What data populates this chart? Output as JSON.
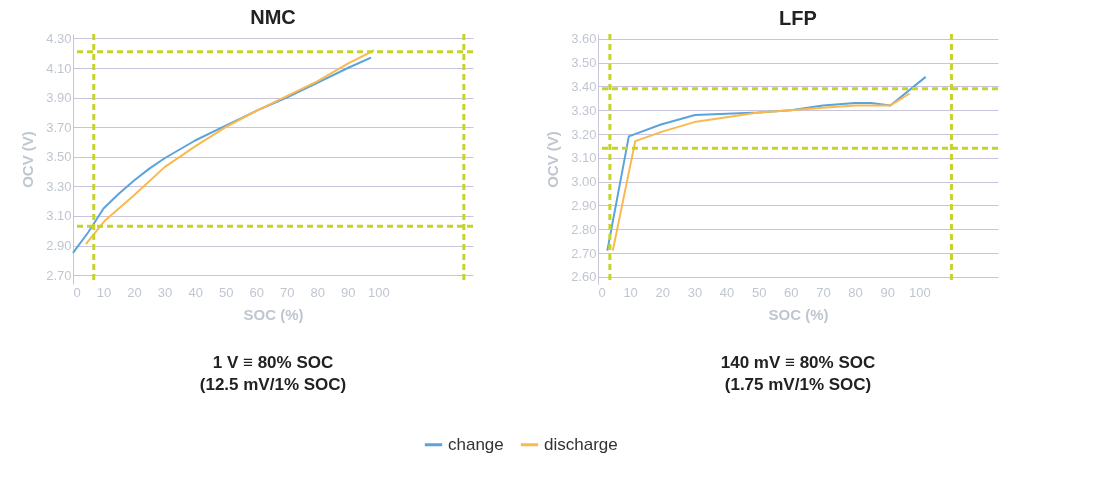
{
  "chart_data": [
    {
      "type": "line",
      "title": "NMC",
      "xlabel": "SOC (%)",
      "ylabel": "OCV (V)",
      "xlim": [
        0,
        131
      ],
      "xticks": [
        0,
        10,
        20,
        30,
        40,
        50,
        60,
        70,
        80,
        90,
        100
      ],
      "ylim": [
        2.64,
        4.33
      ],
      "yticks": [
        {
          "value": 2.7,
          "label": "2.70"
        },
        {
          "value": 2.9,
          "label": "2.90"
        },
        {
          "value": 3.1,
          "label": "3.10"
        },
        {
          "value": 3.3,
          "label": "3.30"
        },
        {
          "value": 3.5,
          "label": "3.50"
        },
        {
          "value": 3.7,
          "label": "3.70"
        },
        {
          "value": 3.9,
          "label": "3.90"
        },
        {
          "value": 4.1,
          "label": "4.10"
        },
        {
          "value": 4.3,
          "label": "4.30"
        }
      ],
      "grid": "y",
      "legend": "bottom",
      "marker": "none",
      "line_style": "solid",
      "series": [
        {
          "name": "change",
          "color": "#5ba3dc",
          "x": [
            0,
            5,
            10,
            15,
            20,
            25,
            30,
            40,
            50,
            55,
            60,
            70,
            80,
            90,
            97.6
          ],
          "values": [
            2.85,
            2.99,
            3.15,
            3.25,
            3.34,
            3.42,
            3.49,
            3.61,
            3.71,
            3.76,
            3.81,
            3.9,
            4.0,
            4.1,
            4.17
          ]
        },
        {
          "name": "discharge",
          "color": "#fbb84d",
          "x": [
            4.2,
            10.5,
            20,
            30,
            40,
            50,
            60,
            70,
            80,
            90,
            98.6
          ],
          "values": [
            2.91,
            3.07,
            3.24,
            3.43,
            3.57,
            3.7,
            3.81,
            3.91,
            4.01,
            4.13,
            4.22
          ]
        }
      ],
      "ref_lines": [
        {
          "axis": "y",
          "value": 4.21,
          "color": "#c5d32a",
          "line_style": "dashed"
        },
        {
          "axis": "y",
          "value": 3.03,
          "color": "#c5d32a",
          "line_style": "dashed"
        },
        {
          "axis": "x",
          "value": 6.8,
          "color": "#c5d32a",
          "line_style": "dashed"
        },
        {
          "axis": "x",
          "value": 128,
          "color": "#c5d32a",
          "line_style": "dashed"
        }
      ],
      "annotations": [
        "1 V ≡ 80% SOC",
        "(12.5 mV/1% SOC)"
      ]
    },
    {
      "type": "line",
      "title": "LFP",
      "xlabel": "SOC (%)",
      "ylabel": "OCV (V)",
      "xlim": [
        0,
        124.5
      ],
      "xticks": [
        0,
        10,
        20,
        30,
        40,
        50,
        60,
        70,
        80,
        90,
        100
      ],
      "ylim": [
        2.57,
        3.62
      ],
      "yticks": [
        {
          "value": 2.6,
          "label": "2.60"
        },
        {
          "value": 2.7,
          "label": "2.70"
        },
        {
          "value": 2.8,
          "label": "2.80"
        },
        {
          "value": 2.9,
          "label": "2.90"
        },
        {
          "value": 3.0,
          "label": "3.00"
        },
        {
          "value": 3.1,
          "label": "3.10"
        },
        {
          "value": 3.2,
          "label": "3.20"
        },
        {
          "value": 3.3,
          "label": "3.30"
        },
        {
          "value": 3.4,
          "label": "3.40"
        },
        {
          "value": 3.5,
          "label": "3.50"
        },
        {
          "value": 3.6,
          "label": "3.60"
        }
      ],
      "grid": "y",
      "legend": "bottom",
      "marker": "none",
      "line_style": "solid",
      "series": [
        {
          "name": "change",
          "color": "#5ba3dc",
          "x": [
            2.9,
            9.6,
            19.6,
            30.2,
            40,
            50,
            60,
            70,
            80,
            85,
            91,
            102
          ],
          "values": [
            2.71,
            3.19,
            3.24,
            3.28,
            3.285,
            3.29,
            3.3,
            3.32,
            3.33,
            3.33,
            3.32,
            3.44
          ]
        },
        {
          "name": "discharge",
          "color": "#fbb84d",
          "x": [
            4.6,
            11.6,
            20,
            30,
            40,
            50,
            60,
            70,
            80,
            91,
            97
          ],
          "values": [
            2.71,
            3.17,
            3.21,
            3.25,
            3.27,
            3.29,
            3.3,
            3.31,
            3.32,
            3.32,
            3.37
          ]
        }
      ],
      "ref_lines": [
        {
          "axis": "y",
          "value": 3.39,
          "color": "#c5d32a",
          "line_style": "dashed"
        },
        {
          "axis": "y",
          "value": 3.14,
          "color": "#c5d32a",
          "line_style": "dashed"
        },
        {
          "axis": "x",
          "value": 3.7,
          "color": "#c5d32a",
          "line_style": "dashed"
        },
        {
          "axis": "x",
          "value": 110,
          "color": "#c5d32a",
          "line_style": "dashed"
        }
      ],
      "annotations": [
        "140 mV ≡ 80% SOC",
        "(1.75 mV/1% SOC)"
      ]
    }
  ]
}
